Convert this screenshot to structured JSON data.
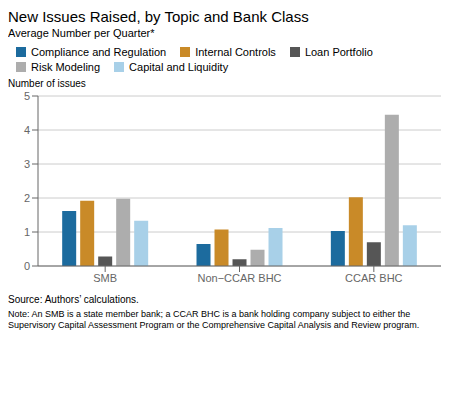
{
  "chart_data": {
    "type": "bar",
    "title": "New Issues Raised, by Topic and Bank Class",
    "subtitle": "Average Number per Quarter*",
    "ylabel": "Number of issues",
    "annotations": [
      "Source: Authors’ calculations.",
      "Note: An SMB is a state member bank; a CCAR BHC is a bank holding company subject to either the\nSupervisory Capital Assessment Program or the Comprehensive Capital Analysis and Review program."
    ],
    "categories": [
      "SMB",
      "Non−CCAR BHC",
      "CCAR BHC"
    ],
    "series": [
      {
        "name": "Compliance and Regulation",
        "color": "#1c6b9e",
        "values": [
          1.62,
          0.65,
          1.03
        ]
      },
      {
        "name": "Internal Controls",
        "color": "#c98a28",
        "values": [
          1.92,
          1.07,
          2.02
        ]
      },
      {
        "name": "Loan Portfolio",
        "color": "#565656",
        "values": [
          0.28,
          0.2,
          0.7
        ]
      },
      {
        "name": "Risk Modeling",
        "color": "#adadad",
        "values": [
          1.98,
          0.48,
          4.45
        ]
      },
      {
        "name": "Capital and Liquidity",
        "color": "#a8d0e8",
        "values": [
          1.33,
          1.12,
          1.2
        ]
      }
    ],
    "ylim": [
      0,
      5
    ],
    "yticks": [
      0,
      1,
      2,
      3,
      4,
      5
    ],
    "grid": true,
    "legend": "top"
  }
}
